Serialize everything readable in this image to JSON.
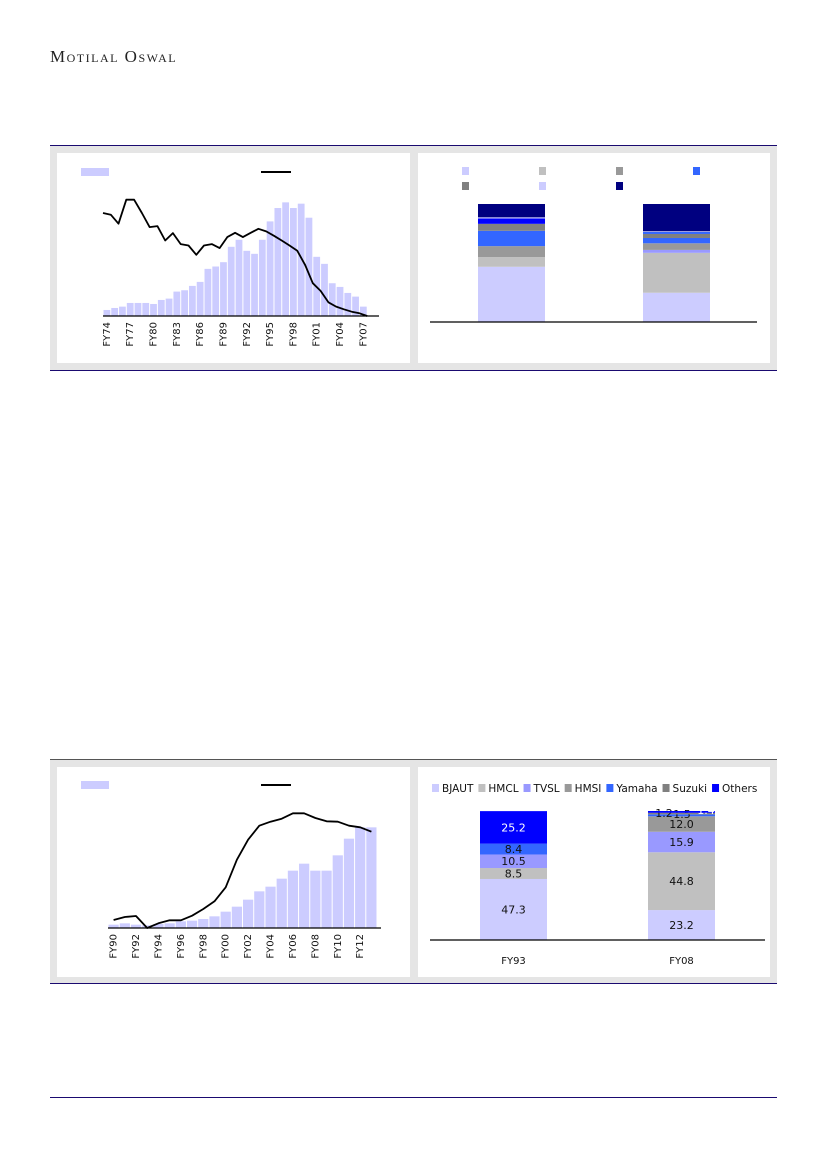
{
  "header": {
    "logo_text": "Motilal Oswal"
  },
  "colors": {
    "rule": "#1a0a70",
    "frame": "#e5e5e5",
    "bar": "#ccccff",
    "line": "#000000"
  },
  "chart_data": [
    {
      "id": "chart1",
      "type": "bar+line",
      "title": "",
      "legend": [
        "",
        ""
      ],
      "legend_position": "top",
      "note": "values in unlabeled relative index units (no axis values shown)",
      "categories": [
        "FY74",
        "FY75",
        "FY76",
        "FY77",
        "FY78",
        "FY79",
        "FY80",
        "FY81",
        "FY82",
        "FY83",
        "FY84",
        "FY85",
        "FY86",
        "FY87",
        "FY88",
        "FY89",
        "FY90",
        "FY91",
        "FY92",
        "FY93",
        "FY94",
        "FY95",
        "FY96",
        "FY97",
        "FY98",
        "FY99",
        "FY00",
        "FY01",
        "FY02",
        "FY03",
        "FY04",
        "FY05",
        "FY06",
        "FY07",
        "FY08"
      ],
      "tick_labels": [
        "FY74",
        "FY77",
        "FY80",
        "FY83",
        "FY86",
        "FY89",
        "FY92",
        "FY95",
        "FY98",
        "FY01",
        "FY04",
        "FY07"
      ],
      "bars": [
        18,
        24,
        28,
        39,
        39,
        39,
        36,
        48,
        52,
        73,
        77,
        90,
        102,
        141,
        148,
        161,
        207,
        228,
        195,
        186,
        228,
        283,
        323,
        340,
        323,
        336,
        294,
        177,
        156,
        98,
        87,
        69,
        58,
        28,
        0
      ],
      "line": [
        308,
        303,
        276,
        348,
        348,
        308,
        266,
        269,
        226,
        248,
        215,
        211,
        183,
        211,
        215,
        203,
        236,
        249,
        236,
        249,
        261,
        253,
        240,
        226,
        211,
        195,
        153,
        98,
        75,
        41,
        28,
        20,
        13,
        8,
        0
      ],
      "ylim": [
        0,
        350
      ]
    },
    {
      "id": "chart2",
      "type": "stacked-bar",
      "title": "",
      "legend_colors": [
        "#ccccff",
        "#c0c0c0",
        "#999999",
        "#3366ff",
        "#808080",
        "#ccccff",
        "#000080"
      ],
      "categories": [
        "",
        ""
      ],
      "stacks": [
        {
          "values": [
            46.8,
            8.2,
            9.3,
            13.0,
            5.9,
            4.5,
            1.0,
            11.3
          ],
          "colors": [
            "#ccccff",
            "#c0c0c0",
            "#999999",
            "#3366ff",
            "#808080",
            "#0000ff",
            "#ccccff",
            "#000080"
          ]
        },
        {
          "values": [
            24.8,
            33.8,
            2.5,
            5.6,
            4.5,
            3.4,
            1.7,
            0.6,
            23.1
          ],
          "colors": [
            "#ccccff",
            "#c0c0c0",
            "#9999ff",
            "#999999",
            "#3366ff",
            "#808080",
            "#3366ff",
            "#ccccff",
            "#000080"
          ]
        }
      ],
      "ylim": [
        0,
        100
      ]
    },
    {
      "id": "chart3",
      "type": "bar+line",
      "title": "",
      "legend": [
        "",
        ""
      ],
      "legend_position": "top",
      "note": "values in unlabeled relative index units (no axis values shown)",
      "categories": [
        "FY90",
        "FY91",
        "FY92",
        "FY93",
        "FY94",
        "FY95",
        "FY96",
        "FY97",
        "FY98",
        "FY99",
        "FY00",
        "FY01",
        "FY02",
        "FY03",
        "FY04",
        "FY05",
        "FY06",
        "FY07",
        "FY08",
        "FY09",
        "FY10",
        "FY11",
        "FY12",
        "FY13"
      ],
      "tick_labels": [
        "FY90",
        "FY92",
        "FY94",
        "FY96",
        "FY98",
        "FY00",
        "FY02",
        "FY04",
        "FY06",
        "FY08",
        "FY10",
        "FY12"
      ],
      "bars": [
        10,
        14,
        10,
        8,
        12,
        14,
        20,
        22,
        27,
        35,
        49,
        64,
        85,
        110,
        124,
        148,
        172,
        193,
        172,
        172,
        218,
        268,
        302,
        302
      ],
      "line": [
        24,
        33,
        36,
        0,
        14,
        23,
        23,
        37,
        57,
        80,
        122,
        205,
        265,
        307,
        319,
        328,
        344,
        344,
        330,
        320,
        319,
        307,
        302,
        289
      ],
      "ylim": [
        0,
        360
      ]
    },
    {
      "id": "chart4",
      "type": "stacked-bar",
      "title": "",
      "legend_position": "top",
      "series": [
        {
          "name": "BJAUT",
          "color": "#ccccff",
          "values": [
            47.3,
            23.2
          ]
        },
        {
          "name": "HMCL",
          "color": "#c0c0c0",
          "values": [
            8.5,
            44.8
          ]
        },
        {
          "name": "TVSL",
          "color": "#9999ff",
          "values": [
            10.5,
            15.9
          ]
        },
        {
          "name": "HMSI",
          "color": "#999999",
          "values": [
            0,
            12.0
          ]
        },
        {
          "name": "Yamaha",
          "color": "#3366ff",
          "values": [
            8.4,
            1.5
          ]
        },
        {
          "name": "Suzuki",
          "color": "#808080",
          "values": [
            0,
            1.2
          ]
        },
        {
          "name": "Others",
          "color": "#0000ff",
          "values": [
            25.2,
            1.4
          ]
        }
      ],
      "categories": [
        "FY93",
        "FY08"
      ],
      "data_labels": [
        [
          "47.3",
          "8.5",
          "10.5",
          "",
          "8.4",
          "",
          "25.2"
        ],
        [
          "23.2",
          "44.8",
          "15.9",
          "12.0",
          "1.5",
          "1.2",
          "1.4"
        ]
      ],
      "ylim": [
        0,
        100
      ]
    }
  ]
}
